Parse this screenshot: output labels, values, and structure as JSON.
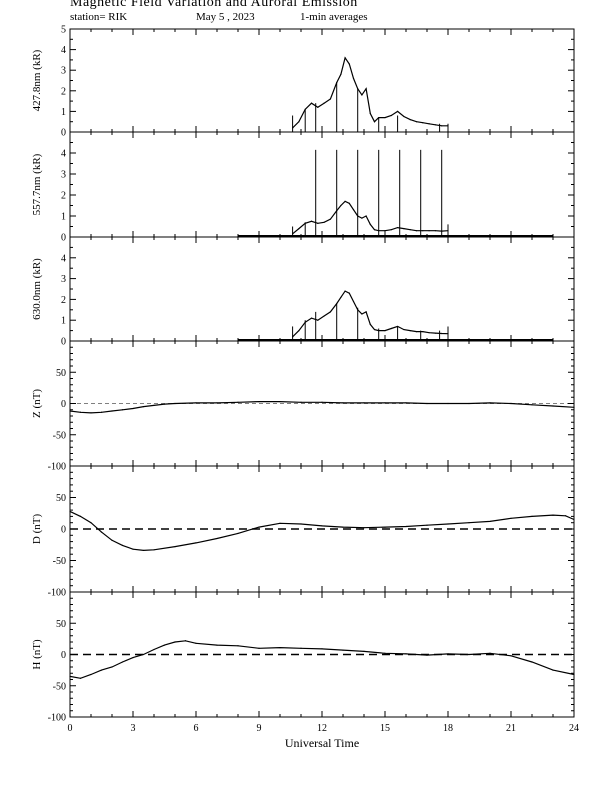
{
  "header": {
    "title": "Magnetic Field Variation and Auroral Emission",
    "station": "station= RIK",
    "date": "May 5  , 2023",
    "averaging": "1-min averages"
  },
  "chart_data": [
    {
      "type": "line",
      "id": "aurora-4278",
      "ylabel": "427.8nm (kR)",
      "ylim": [
        0,
        5
      ],
      "yticks": [
        0,
        1,
        2,
        3,
        4,
        5
      ],
      "xlim": [
        0,
        24
      ],
      "reference_line": null,
      "x": [
        10.6,
        10.9,
        11.2,
        11.5,
        11.8,
        12.1,
        12.4,
        12.7,
        12.9,
        13.1,
        13.3,
        13.5,
        13.7,
        13.9,
        14.1,
        14.3,
        14.5,
        14.7,
        15.0,
        15.3,
        15.6,
        15.9,
        16.2,
        16.5,
        16.8,
        17.1,
        17.4,
        17.7,
        18.0
      ],
      "y": [
        0.2,
        0.5,
        1.1,
        1.4,
        1.2,
        1.4,
        1.6,
        2.4,
        2.8,
        3.6,
        3.3,
        2.6,
        2.1,
        1.8,
        2.1,
        0.9,
        0.5,
        0.7,
        0.7,
        0.8,
        1.0,
        0.75,
        0.6,
        0.5,
        0.45,
        0.4,
        0.35,
        0.3,
        0.3
      ],
      "spikes": [
        [
          10.6,
          0.8
        ],
        [
          11.2,
          1.1
        ],
        [
          11.7,
          1.4
        ],
        [
          12.7,
          2.4
        ],
        [
          13.7,
          2.1
        ],
        [
          14.7,
          0.7
        ],
        [
          15.6,
          0.8
        ],
        [
          17.6,
          0.4
        ],
        [
          18.0,
          0.4
        ]
      ]
    },
    {
      "type": "line",
      "id": "aurora-5577",
      "ylabel": "557.7nm (kR)",
      "ylim": [
        0,
        5
      ],
      "yticks": [
        0,
        1,
        2,
        3,
        4
      ],
      "xlim": [
        0,
        24
      ],
      "reference_line": null,
      "baseline_extent": [
        8.0,
        23.0
      ],
      "x": [
        10.6,
        10.9,
        11.2,
        11.5,
        11.8,
        12.1,
        12.4,
        12.7,
        12.9,
        13.1,
        13.3,
        13.5,
        13.7,
        13.9,
        14.1,
        14.3,
        14.5,
        14.7,
        15.0,
        15.3,
        15.6,
        15.9,
        16.2,
        16.5,
        16.8,
        17.1,
        17.4,
        17.7,
        18.0
      ],
      "y": [
        0.15,
        0.4,
        0.65,
        0.75,
        0.65,
        0.7,
        0.85,
        1.25,
        1.5,
        1.7,
        1.6,
        1.3,
        1.0,
        0.9,
        1.0,
        0.6,
        0.35,
        0.3,
        0.3,
        0.35,
        0.45,
        0.4,
        0.35,
        0.3,
        0.3,
        0.3,
        0.3,
        0.28,
        0.3
      ],
      "spikes": [
        [
          10.6,
          0.5
        ],
        [
          11.2,
          0.7
        ],
        [
          11.7,
          4.15
        ],
        [
          12.7,
          4.15
        ],
        [
          13.7,
          4.15
        ],
        [
          14.7,
          4.15
        ],
        [
          15.7,
          4.15
        ],
        [
          16.7,
          4.15
        ],
        [
          17.7,
          4.15
        ],
        [
          18.0,
          0.6
        ]
      ]
    },
    {
      "type": "line",
      "id": "aurora-6300",
      "ylabel": "630.0nm (kR)",
      "ylim": [
        0,
        5
      ],
      "yticks": [
        0,
        1,
        2,
        3,
        4
      ],
      "xlim": [
        0,
        24
      ],
      "reference_line": null,
      "baseline_extent": [
        8.0,
        23.0
      ],
      "x": [
        10.6,
        10.9,
        11.2,
        11.5,
        11.8,
        12.1,
        12.4,
        12.7,
        12.9,
        13.1,
        13.3,
        13.5,
        13.7,
        13.9,
        14.1,
        14.3,
        14.5,
        14.7,
        15.0,
        15.3,
        15.6,
        15.9,
        16.2,
        16.5,
        16.8,
        17.1,
        17.4,
        17.7,
        18.0
      ],
      "y": [
        0.2,
        0.5,
        0.9,
        1.1,
        1.0,
        1.2,
        1.4,
        1.8,
        2.1,
        2.4,
        2.3,
        1.9,
        1.5,
        1.3,
        1.4,
        0.8,
        0.55,
        0.5,
        0.5,
        0.6,
        0.7,
        0.55,
        0.5,
        0.45,
        0.45,
        0.4,
        0.38,
        0.36,
        0.35
      ],
      "spikes": [
        [
          10.6,
          0.7
        ],
        [
          11.2,
          1.0
        ],
        [
          11.7,
          1.4
        ],
        [
          12.7,
          1.8
        ],
        [
          13.7,
          1.6
        ],
        [
          14.7,
          0.6
        ],
        [
          15.6,
          0.7
        ],
        [
          16.7,
          0.5
        ],
        [
          17.6,
          0.5
        ],
        [
          18.0,
          0.7
        ]
      ]
    },
    {
      "type": "line",
      "id": "magnetic-z",
      "ylabel": "Z (nT)",
      "ylim": [
        -100,
        100
      ],
      "yticks": [
        -100,
        -50,
        0,
        50
      ],
      "xlim": [
        0,
        24
      ],
      "reference_line": {
        "y": 0,
        "style": "thin-dashed"
      },
      "x": [
        0,
        0.5,
        1,
        1.5,
        2,
        2.5,
        3,
        3.5,
        4,
        4.5,
        5,
        6,
        7,
        8,
        9,
        10,
        11,
        12,
        13,
        14,
        15,
        16,
        17,
        18,
        19,
        20,
        21,
        22,
        23,
        24
      ],
      "y": [
        -12,
        -14,
        -15,
        -14,
        -12,
        -10,
        -8,
        -5,
        -3,
        -1,
        0,
        1,
        1,
        2,
        3,
        3,
        2,
        2,
        1,
        1,
        1,
        1,
        0,
        0,
        0,
        1,
        0,
        -2,
        -4,
        -6
      ]
    },
    {
      "type": "line",
      "id": "magnetic-d",
      "ylabel": "D (nT)",
      "ylim": [
        -100,
        100
      ],
      "yticks": [
        -100,
        -50,
        0,
        50
      ],
      "xlim": [
        0,
        24
      ],
      "reference_line": {
        "y": 0,
        "style": "thick-dashed"
      },
      "x": [
        0,
        0.5,
        1,
        1.5,
        2,
        2.5,
        3,
        3.5,
        4,
        5,
        6,
        7,
        8,
        9,
        10,
        11,
        12,
        13,
        14,
        15,
        16,
        17,
        18,
        19,
        20,
        21,
        22,
        23,
        23.6,
        24
      ],
      "y": [
        28,
        20,
        10,
        -5,
        -18,
        -26,
        -32,
        -34,
        -33,
        -28,
        -22,
        -15,
        -7,
        3,
        9,
        8,
        5,
        3,
        2,
        3,
        4,
        6,
        8,
        10,
        12,
        17,
        20,
        22,
        21,
        15
      ]
    },
    {
      "type": "line",
      "id": "magnetic-h",
      "ylabel": "H (nT)",
      "ylim": [
        -100,
        100
      ],
      "yticks": [
        -100,
        -50,
        0,
        50
      ],
      "xlim": [
        0,
        24
      ],
      "xlabel": "Universal Time",
      "xticks": [
        0,
        3,
        6,
        9,
        12,
        15,
        18,
        21,
        24
      ],
      "reference_line": {
        "y": 0,
        "style": "thick-dashed"
      },
      "x": [
        0,
        0.5,
        1,
        1.5,
        2,
        2.5,
        3,
        3.5,
        4,
        4.5,
        5,
        5.5,
        6,
        7,
        8,
        9,
        10,
        11,
        12,
        13,
        14,
        15,
        16,
        17,
        18,
        19,
        20,
        21,
        22,
        23,
        24
      ],
      "y": [
        -35,
        -38,
        -32,
        -25,
        -20,
        -12,
        -5,
        0,
        8,
        15,
        20,
        22,
        18,
        15,
        14,
        10,
        11,
        10,
        9,
        7,
        5,
        2,
        1,
        -1,
        1,
        0,
        2,
        -2,
        -12,
        -25,
        -32
      ]
    }
  ]
}
